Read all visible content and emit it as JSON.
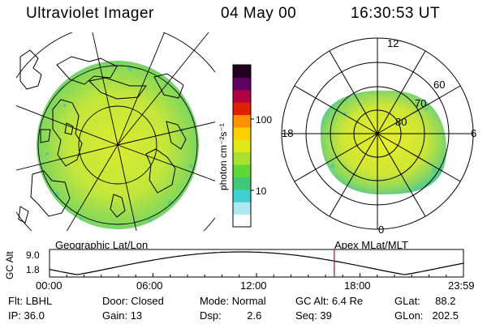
{
  "header": {
    "instrument": "Ultraviolet Imager",
    "date": "04 May 00",
    "time": "16:30:53 UT"
  },
  "maps": {
    "geographic_label": "Geographic Lat/Lon",
    "apex_label": "Apex MLat/MLT"
  },
  "colorbar": {
    "unit_label": "photon cm⁻²s⁻¹",
    "ticks": [
      "100",
      "10"
    ],
    "scale": "log",
    "colors": [
      "#ffffff",
      "#b0e8f0",
      "#40d0d0",
      "#40c878",
      "#60d838",
      "#a8e030",
      "#e0e818",
      "#ffd000",
      "#ff9000",
      "#e02000",
      "#b00040",
      "#600060",
      "#200020"
    ]
  },
  "mlt_labels": {
    "top": "12",
    "left": "18",
    "right": "6",
    "bottom": "0"
  },
  "mlat_labels": [
    "60",
    "70",
    "80"
  ],
  "altitude_plot": {
    "ylabel": "GC Alt",
    "yticks": [
      "9.0",
      "1.8"
    ],
    "xticks": [
      "00:00",
      "06:00",
      "12:00",
      "18:00",
      "23:59"
    ],
    "current_time_marker_hours": 16.51
  },
  "status": {
    "row1": [
      {
        "label": "Flt:",
        "value": "LBHL"
      },
      {
        "label": "Door:",
        "value": "Closed"
      },
      {
        "label": "Mode:",
        "value": "Normal"
      },
      {
        "label": "GC Alt:",
        "value": "6.4 Re"
      },
      {
        "label": "GLat:",
        "value": "88.2"
      }
    ],
    "row2": [
      {
        "label": "IP:",
        "value": "36.0"
      },
      {
        "label": "Gain:",
        "value": "13"
      },
      {
        "label": "Dsp:",
        "value": "2.6"
      },
      {
        "label": "Seq:",
        "value": "39"
      },
      {
        "label": "GLon:",
        "value": "202.5"
      }
    ]
  }
}
